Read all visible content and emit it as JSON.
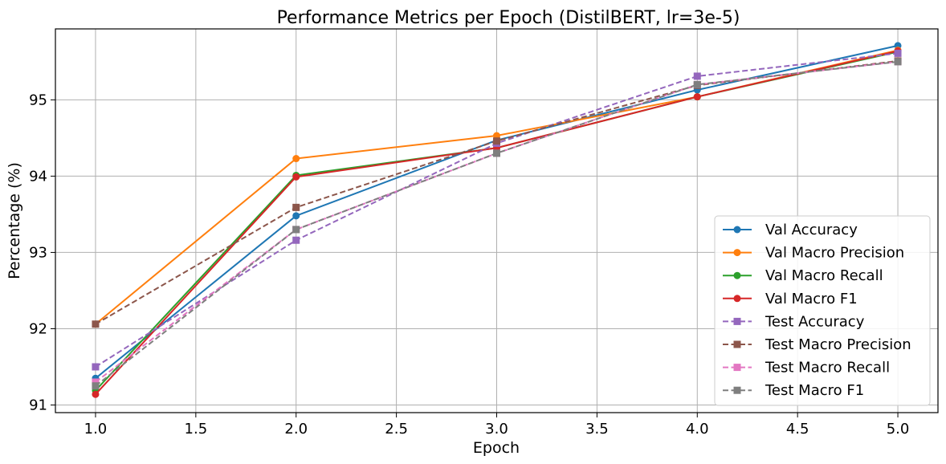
{
  "chart_data": {
    "type": "line",
    "title": "Performance Metrics per Epoch (DistilBERT, lr=3e-5)",
    "xlabel": "Epoch",
    "ylabel": "Percentage (%)",
    "x": [
      1.0,
      2.0,
      3.0,
      4.0,
      5.0
    ],
    "xlim": [
      0.8,
      5.2
    ],
    "ylim": [
      90.9,
      95.93
    ],
    "xticks": [
      1.0,
      1.5,
      2.0,
      2.5,
      3.0,
      3.5,
      4.0,
      4.5,
      5.0
    ],
    "xtick_labels": [
      "1.0",
      "1.5",
      "2.0",
      "2.5",
      "3.0",
      "3.5",
      "4.0",
      "4.5",
      "5.0"
    ],
    "yticks": [
      91,
      92,
      93,
      94,
      95
    ],
    "ytick_labels": [
      "91",
      "92",
      "93",
      "94",
      "95"
    ],
    "grid": true,
    "legend_position": "lower-right",
    "series": [
      {
        "name": "Val Accuracy",
        "color": "#1f77b4",
        "style": "solid",
        "marker": "circle",
        "values": [
          91.35,
          93.48,
          94.47,
          95.13,
          95.71
        ]
      },
      {
        "name": "Val Macro Precision",
        "color": "#ff7f0e",
        "style": "solid",
        "marker": "circle",
        "values": [
          92.06,
          94.23,
          94.53,
          95.04,
          95.65
        ]
      },
      {
        "name": "Val Macro Recall",
        "color": "#2ca02c",
        "style": "solid",
        "marker": "circle",
        "values": [
          91.19,
          94.01,
          94.37,
          95.04,
          95.63
        ]
      },
      {
        "name": "Val Macro F1",
        "color": "#d62728",
        "style": "solid",
        "marker": "circle",
        "values": [
          91.14,
          93.99,
          94.37,
          95.04,
          95.64
        ]
      },
      {
        "name": "Test Accuracy",
        "color": "#9467bd",
        "style": "dashed",
        "marker": "square",
        "values": [
          91.5,
          93.16,
          94.43,
          95.31,
          95.61
        ]
      },
      {
        "name": "Test Macro Precision",
        "color": "#8c564b",
        "style": "dashed",
        "marker": "square",
        "values": [
          92.06,
          93.59,
          94.46,
          95.19,
          95.51
        ]
      },
      {
        "name": "Test Macro Recall",
        "color": "#e377c2",
        "style": "dashed",
        "marker": "square",
        "values": [
          91.3,
          93.3,
          94.3,
          95.2,
          95.5
        ]
      },
      {
        "name": "Test Macro F1",
        "color": "#7f7f7f",
        "style": "dashed",
        "marker": "square",
        "values": [
          91.25,
          93.3,
          94.3,
          95.2,
          95.5
        ]
      }
    ]
  }
}
